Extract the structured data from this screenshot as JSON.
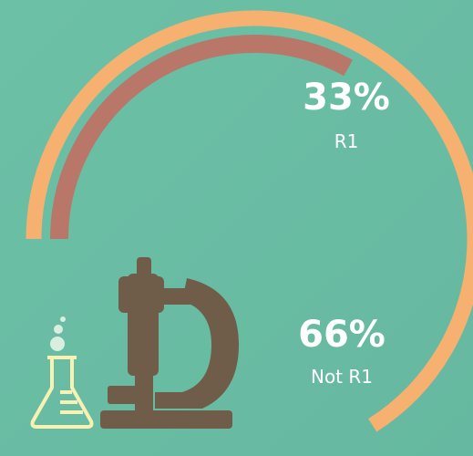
{
  "chart_data": {
    "type": "arc",
    "categories": [
      "R1",
      "Not R1"
    ],
    "values": [
      33,
      66
    ],
    "value_labels": [
      "33%",
      "66%"
    ],
    "colors": [
      "#b97769",
      "#f6b06f"
    ]
  }
}
